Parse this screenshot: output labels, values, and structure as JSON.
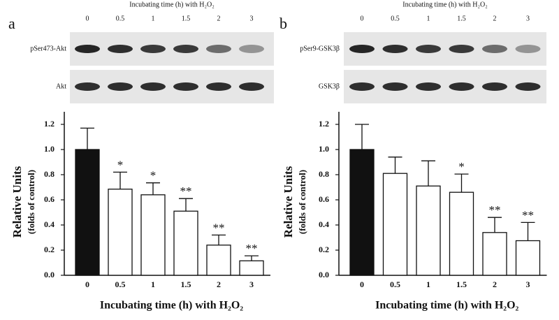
{
  "chart_data": [
    {
      "type": "bar",
      "panel": "a",
      "blot": {
        "title": "Incubating time (h) with H₂O₂",
        "lanes": [
          "0",
          "0.5",
          "1",
          "1.5",
          "2",
          "3"
        ],
        "rows": [
          "pSer473-Akt",
          "Akt"
        ]
      },
      "y_label": [
        "Relative Units",
        "(folds of control)"
      ],
      "x_label": "Incubating time (h)  with  H₂O₂",
      "categories": [
        "0",
        "0.5",
        "1",
        "1.5",
        "2",
        "3"
      ],
      "values": [
        1.0,
        0.685,
        0.64,
        0.51,
        0.24,
        0.115
      ],
      "errors": [
        0.17,
        0.135,
        0.095,
        0.1,
        0.08,
        0.04
      ],
      "colors": [
        "#111111",
        "#ffffff",
        "#ffffff",
        "#ffffff",
        "#ffffff",
        "#ffffff"
      ],
      "annotations": [
        null,
        "*",
        "*",
        "**",
        "**",
        "**"
      ],
      "ylim": [
        0,
        1.3
      ],
      "yticks": [
        {
          "value": 0,
          "label": "0.0"
        },
        0.2,
        0.4,
        0.6,
        0.8,
        {
          "value": 1,
          "label": "1.0"
        },
        1.2
      ]
    },
    {
      "type": "bar",
      "panel": "b",
      "blot": {
        "title": "Incubating time (h) with H₂O₂",
        "lanes": [
          "0",
          "0.5",
          "1",
          "1.5",
          "2",
          "3"
        ],
        "rows": [
          "pSer9-GSK3β",
          "GSK3β"
        ]
      },
      "y_label": [
        "Relative Units",
        "(folds of control)"
      ],
      "x_label": "Incubating time (h)  with  H₂O₂",
      "categories": [
        "0",
        "0.5",
        "1",
        "1.5",
        "2",
        "3"
      ],
      "values": [
        1.0,
        0.81,
        0.71,
        0.66,
        0.34,
        0.275
      ],
      "errors": [
        0.2,
        0.13,
        0.2,
        0.145,
        0.12,
        0.145
      ],
      "colors": [
        "#111111",
        "#ffffff",
        "#ffffff",
        "#ffffff",
        "#ffffff",
        "#ffffff"
      ],
      "annotations": [
        null,
        null,
        null,
        "*",
        "**",
        "**"
      ],
      "ylim": [
        0,
        1.3
      ],
      "yticks": [
        {
          "value": 0,
          "label": "0.0"
        },
        0.2,
        0.4,
        0.6,
        0.8,
        {
          "value": 1,
          "label": "1.0"
        },
        1.2
      ]
    }
  ]
}
